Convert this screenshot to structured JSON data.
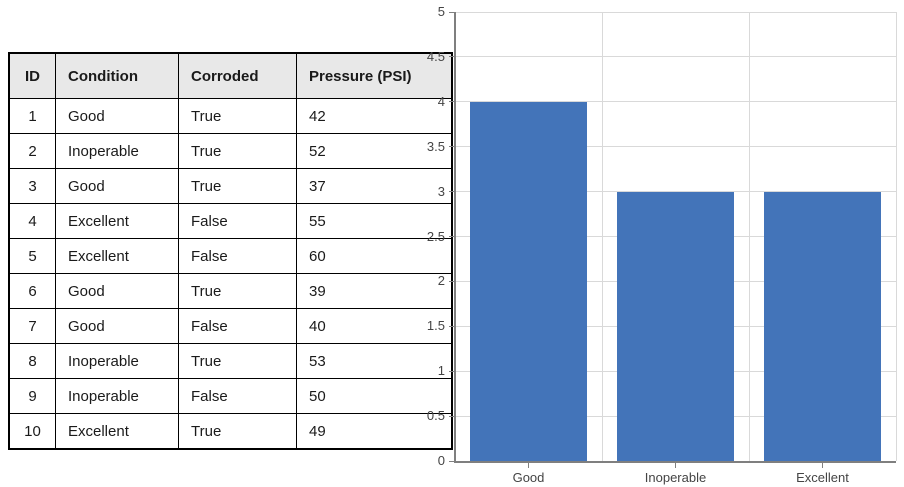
{
  "table": {
    "columns": [
      "ID",
      "Condition",
      "Corroded",
      "Pressure (PSI)"
    ],
    "rows": [
      [
        "1",
        "Good",
        "True",
        "42"
      ],
      [
        "2",
        "Inoperable",
        "True",
        "52"
      ],
      [
        "3",
        "Good",
        "True",
        "37"
      ],
      [
        "4",
        "Excellent",
        "False",
        "55"
      ],
      [
        "5",
        "Excellent",
        "False",
        "60"
      ],
      [
        "6",
        "Good",
        "True",
        "39"
      ],
      [
        "7",
        "Good",
        "False",
        "40"
      ],
      [
        "8",
        "Inoperable",
        "True",
        "53"
      ],
      [
        "9",
        "Inoperable",
        "False",
        "50"
      ],
      [
        "10",
        "Excellent",
        "True",
        "49"
      ]
    ]
  },
  "chart_data": {
    "type": "bar",
    "categories": [
      "Good",
      "Inoperable",
      "Excellent"
    ],
    "values": [
      4,
      3,
      3
    ],
    "title": "",
    "xlabel": "",
    "ylabel": "",
    "ylim": [
      0,
      5
    ],
    "ytick_step": 0.5,
    "legend": false,
    "grid": true,
    "colors": {
      "bar": "#4374b9",
      "gridline": "#d9d9d9",
      "axis": "#7f7f7f",
      "tick": "#808080",
      "label": "#444444"
    }
  }
}
